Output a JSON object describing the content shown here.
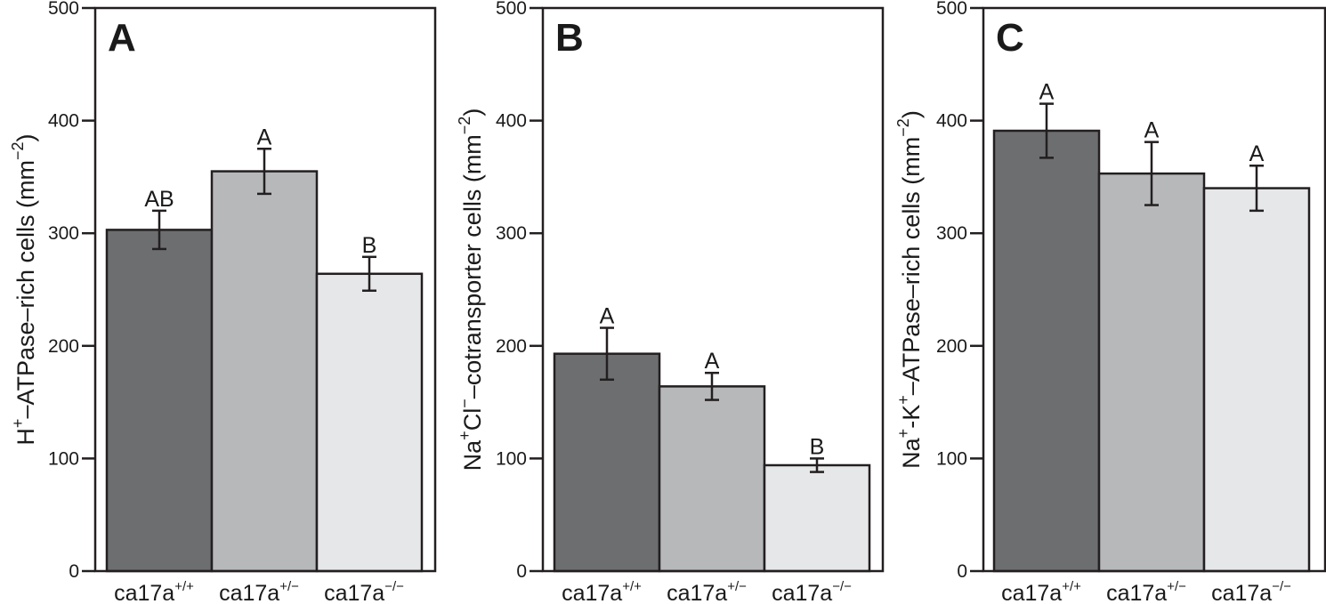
{
  "chart_data": [
    {
      "type": "bar",
      "panel": "A",
      "title": "",
      "ylabel": "H+–ATPase–rich cells (mm−2)",
      "ylabel_parts": {
        "pre": "H",
        "sup1": "+",
        "mid": "–ATPase–rich cells (mm",
        "sup2": "−2",
        "post": ")"
      },
      "xlabel": "",
      "categories": [
        "ca17a+/+",
        "ca17a+/−",
        "ca17a−/−"
      ],
      "category_parts": [
        {
          "base": "ca17a",
          "sup": "+/+"
        },
        {
          "base": "ca17a",
          "sup": "+/−"
        },
        {
          "base": "ca17a",
          "sup": "−/−"
        }
      ],
      "values": [
        303,
        355,
        264
      ],
      "errors": [
        17,
        20,
        15
      ],
      "significance": [
        "AB",
        "A",
        "B"
      ],
      "ylim": [
        0,
        500
      ],
      "yticks": [
        0,
        100,
        200,
        300,
        400,
        500
      ],
      "grid": false
    },
    {
      "type": "bar",
      "panel": "B",
      "title": "",
      "ylabel": "Na+Cl−–cotransporter cells (mm−2)",
      "ylabel_parts": {
        "pre": "Na",
        "sup1": "+",
        "mid": "Cl",
        "sup1b": "−",
        "mid2": "–cotransporter cells (mm",
        "sup2": "−2",
        "post": ")"
      },
      "xlabel": "",
      "categories": [
        "ca17a+/+",
        "ca17a+/−",
        "ca17a−/−"
      ],
      "category_parts": [
        {
          "base": "ca17a",
          "sup": "+/+"
        },
        {
          "base": "ca17a",
          "sup": "+/−"
        },
        {
          "base": "ca17a",
          "sup": "−/−"
        }
      ],
      "values": [
        193,
        164,
        94
      ],
      "errors": [
        23,
        12,
        6
      ],
      "significance": [
        "A",
        "A",
        "B"
      ],
      "ylim": [
        0,
        500
      ],
      "yticks": [
        0,
        100,
        200,
        300,
        400,
        500
      ],
      "grid": false
    },
    {
      "type": "bar",
      "panel": "C",
      "title": "",
      "ylabel": "Na+-K+–ATPase–rich cells (mm−2)",
      "ylabel_parts": {
        "pre": "Na",
        "sup1": "+",
        "mid": "-K",
        "sup1b": "+",
        "mid2": "–ATPase–rich cells (mm",
        "sup2": "−2",
        "post": ")"
      },
      "xlabel": "",
      "categories": [
        "ca17a+/+",
        "ca17a+/−",
        "ca17a−/−"
      ],
      "category_parts": [
        {
          "base": "ca17a",
          "sup": "+/+"
        },
        {
          "base": "ca17a",
          "sup": "+/−"
        },
        {
          "base": "ca17a",
          "sup": "−/−"
        }
      ],
      "values": [
        391,
        353,
        340
      ],
      "errors": [
        24,
        28,
        20
      ],
      "significance": [
        "A",
        "A",
        "A"
      ],
      "ylim": [
        0,
        500
      ],
      "yticks": [
        0,
        100,
        200,
        300,
        400,
        500
      ],
      "grid": false
    }
  ],
  "colors": {
    "bars": [
      "#6d6e70",
      "#b7b8ba",
      "#e6e7e8"
    ],
    "stroke": "#231f20"
  }
}
